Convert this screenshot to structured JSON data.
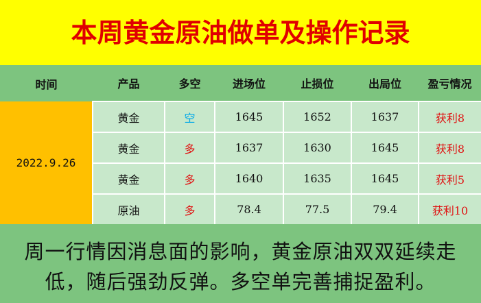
{
  "header": {
    "title": "本周黄金原油做单及操作记录"
  },
  "table": {
    "columns": [
      "时间",
      "产品",
      "多空",
      "进场位",
      "止损位",
      "出局位",
      "盈亏情况"
    ],
    "date": "2022.9.26",
    "rows": [
      [
        "黄金",
        "空",
        "1645",
        "1652",
        "1637",
        "获利8"
      ],
      [
        "黄金",
        "多",
        "1637",
        "1630",
        "1645",
        "获利8"
      ],
      [
        "黄金",
        "多",
        "1640",
        "1635",
        "1645",
        "获利5"
      ],
      [
        "原油",
        "多",
        "78.4",
        "77.5",
        "79.4",
        "获利10"
      ]
    ],
    "direction_colors": {
      "空": "#00a8e8",
      "多": "#e01010"
    }
  },
  "footer": {
    "text": "周一行情因消息面的影响，黄金原油双双延续走低，随后强劲反弹。多空单完善捕捉盈利。"
  }
}
